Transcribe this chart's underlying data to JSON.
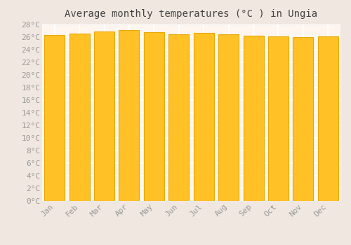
{
  "title": "Average monthly temperatures (°C ) in Ungia",
  "months": [
    "Jan",
    "Feb",
    "Mar",
    "Apr",
    "May",
    "Jun",
    "Jul",
    "Aug",
    "Sep",
    "Oct",
    "Nov",
    "Dec"
  ],
  "values": [
    26.3,
    26.6,
    26.9,
    27.1,
    26.8,
    26.4,
    26.7,
    26.4,
    26.2,
    26.1,
    26.0,
    26.1
  ],
  "bar_color": "#FFC125",
  "bar_edge_color": "#E8A800",
  "background_color": "#f0e8e0",
  "plot_bg_color": "#fdf5ee",
  "grid_color": "#ffffff",
  "ylim": [
    0,
    28
  ],
  "ytick_step": 2,
  "title_fontsize": 10,
  "tick_fontsize": 8,
  "tick_color": "#999999",
  "bar_edge_width": 0.8,
  "bar_width": 0.82
}
